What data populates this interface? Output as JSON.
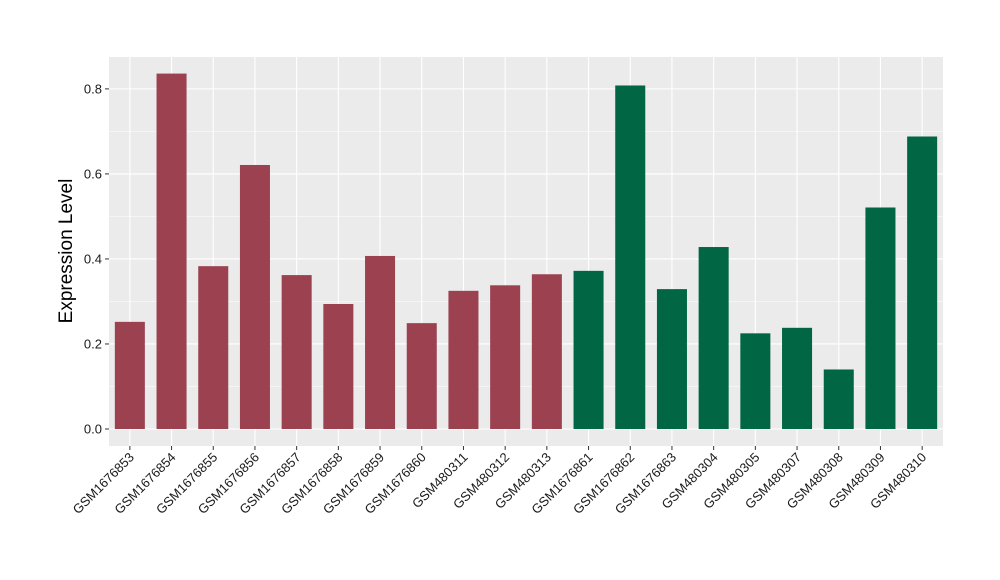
{
  "chart_data": {
    "type": "bar",
    "title": "",
    "xlabel": "",
    "ylabel": "Expression Level",
    "ylim": [
      -0.04,
      0.875
    ],
    "yticks": [
      0.0,
      0.2,
      0.4,
      0.6,
      0.8
    ],
    "ytick_labels": [
      "0.0",
      "0.2",
      "0.4",
      "0.6",
      "0.8"
    ],
    "grid": true,
    "background": "#ebebeb",
    "categories": [
      "GSM1676853",
      "GSM1676854",
      "GSM1676855",
      "GSM1676856",
      "GSM1676857",
      "GSM1676858",
      "GSM1676859",
      "GSM1676860",
      "GSM480311",
      "GSM480312",
      "GSM480313",
      "GSM1676861",
      "GSM1676862",
      "GSM1676863",
      "GSM480304",
      "GSM480305",
      "GSM480307",
      "GSM480308",
      "GSM480309",
      "GSM480310"
    ],
    "values": [
      0.252,
      0.836,
      0.383,
      0.621,
      0.362,
      0.294,
      0.407,
      0.249,
      0.325,
      0.338,
      0.364,
      0.372,
      0.808,
      0.329,
      0.428,
      0.225,
      0.238,
      0.14,
      0.521,
      0.688
    ],
    "groups": [
      "g1",
      "g1",
      "g1",
      "g1",
      "g1",
      "g1",
      "g1",
      "g1",
      "g1",
      "g1",
      "g1",
      "g2",
      "g2",
      "g2",
      "g2",
      "g2",
      "g2",
      "g2",
      "g2",
      "g2"
    ],
    "group_colors": {
      "g1": "#9b4150",
      "g2": "#006644"
    }
  }
}
